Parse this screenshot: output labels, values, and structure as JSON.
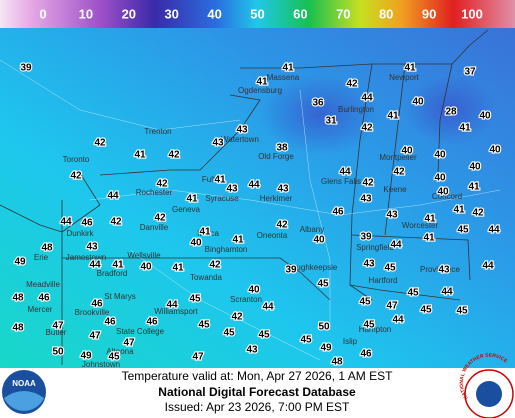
{
  "legend": {
    "ticks": [
      0,
      10,
      20,
      30,
      40,
      50,
      60,
      70,
      80,
      90,
      100
    ]
  },
  "temps": [
    39,
    41,
    41,
    41,
    37,
    42,
    36,
    44,
    40,
    28,
    41,
    31,
    42,
    41,
    40,
    43,
    42,
    41,
    42,
    43,
    38,
    40,
    40,
    40,
    42,
    42,
    41,
    43,
    44,
    43,
    44,
    42,
    42,
    40,
    40,
    44,
    41,
    40,
    41,
    44,
    46,
    42,
    42,
    42,
    46,
    43,
    43,
    41,
    41,
    42,
    41,
    40,
    41,
    40,
    39,
    44,
    41,
    45,
    44,
    43,
    48,
    49,
    40,
    41,
    42,
    39,
    43,
    45,
    43,
    44,
    44,
    41,
    48,
    46,
    46,
    44,
    45,
    40,
    45,
    45,
    45,
    47,
    44,
    45,
    48,
    47,
    46,
    46,
    42,
    45,
    44,
    45,
    44,
    45,
    47,
    47,
    45,
    45,
    50,
    49,
    50,
    49,
    45,
    47,
    43,
    45,
    48,
    46
  ],
  "cities": [
    "Massena",
    "Ogdensburg",
    "Newport",
    "Trenton",
    "Watertown",
    "Old Forge",
    "Toronto",
    "Glens Falls",
    "Rochester",
    "Fulton",
    "Syracuse",
    "Herkimer",
    "Geneva",
    "Dunkirk",
    "Danville",
    "Ithaca",
    "Oneonta",
    "Albany",
    "Keene",
    "Concord",
    "Binghamton",
    "Jamestown",
    "Wellsville",
    "Towanda",
    "Hartford",
    "Providence",
    "Bradford",
    "Erie",
    "Meadville",
    "Scranton",
    "State College",
    "Williamsport",
    "Altoona",
    "Johnstown",
    "Butler",
    "Mercer",
    "Brookville",
    "St Marys",
    "Poughkeepsie",
    "Worcester",
    "Montpelier",
    "Burlington",
    "Springfield",
    "Islip",
    "Hampton"
  ],
  "footer": {
    "valid": "Temperature valid at: Mon, Apr 27 2026, 1 AM EST",
    "title": "National Digital Forecast Database",
    "issued": "Issued: Apr 23 2026, 7:00 PM EST"
  },
  "logos": {
    "noaa": "NOAA",
    "nws": "NATIONAL WEATHER SERVICE"
  }
}
